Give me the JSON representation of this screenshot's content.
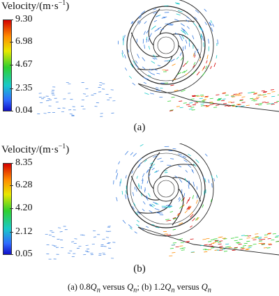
{
  "panels": [
    {
      "colorbar": {
        "title_main": "Velocity/(m·s",
        "title_sup": "−1",
        "title_close": ")",
        "ticks": [
          "9.30",
          "6.98",
          "4.67",
          "2.35",
          "0.04"
        ]
      },
      "label": "(a)"
    },
    {
      "colorbar": {
        "title_main": "Velocity/(m·s",
        "title_sup": "−1",
        "title_close": ")",
        "ticks": [
          "8.35",
          "6.28",
          "4.20",
          "2.12",
          "0.05"
        ]
      },
      "label": "(b)"
    }
  ],
  "caption": {
    "a_prefix": "(a) 0.8",
    "a_q": "Q",
    "a_n": "n",
    "a_versus": " versus ",
    "a_q2": "Q",
    "a_n2": "n",
    "sep": "; (b) 1.2",
    "b_q": "Q",
    "b_n": "n",
    "b_versus": " versus ",
    "b_q2": "Q",
    "b_n2": "n"
  },
  "colors": {
    "max": "#d40000",
    "high": "#ff8c00",
    "mid": "#2fd02f",
    "low": "#19c9c9",
    "min": "#1010c8",
    "outline": "#222222"
  }
}
